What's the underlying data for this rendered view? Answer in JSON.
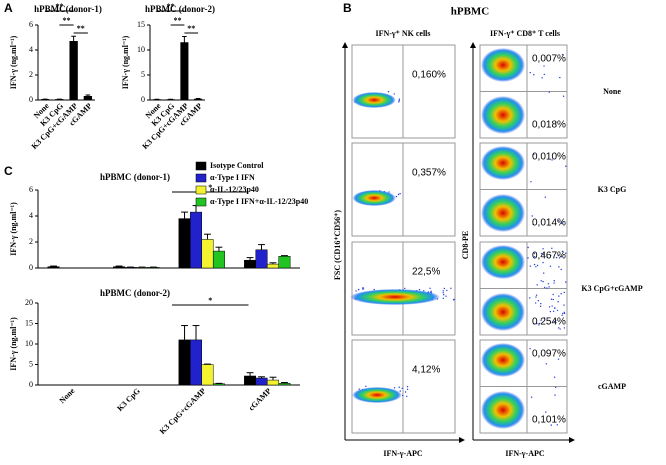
{
  "figure": {
    "panel_a": "A",
    "panel_b": "B",
    "panel_c": "C",
    "b_title": "hPBMC",
    "nk_header": "IFN-γ⁺ NK cells",
    "cd8_header": "IFN-γ⁺ CD8⁺ T cells",
    "nk_ylabel": "FSC (CD16⁺CD56⁺)",
    "nk_xlabel": "IFN-γ-APC",
    "cd8_ylabel": "CD8-PE",
    "cd8_xlabel": "IFN-γ-APC",
    "rows": [
      {
        "label": "None",
        "nk": "0,160%",
        "cd8_top": "0,007%",
        "cd8_bottom": "0,018%"
      },
      {
        "label": "K3 CpG",
        "nk": "0,357%",
        "cd8_top": "0,010%",
        "cd8_bottom": "0,014%"
      },
      {
        "label": "K3 CpG+cGAMP",
        "nk": "22,5%",
        "cd8_top": "0,467%",
        "cd8_bottom": "0,254%"
      },
      {
        "label": "cGAMP",
        "nk": "4,12%",
        "cd8_top": "0,097%",
        "cd8_bottom": "0,101%"
      }
    ]
  },
  "chart_data": [
    {
      "type": "bar",
      "title": "hPBMC(donor-1)",
      "y_label": "IFN-γ (ng.ml⁻¹)",
      "categories": [
        "None",
        "K3 CpG",
        "K3 CpG+cGAMP",
        "cGAMP"
      ],
      "values": [
        0.05,
        0.05,
        4.7,
        0.3
      ],
      "errors": [
        0.02,
        0.02,
        0.4,
        0.1
      ],
      "color": "#000000",
      "ylim": [
        0,
        6
      ],
      "yticks": [
        0,
        2,
        4,
        6
      ],
      "significance": [
        "**",
        "**",
        "**"
      ]
    },
    {
      "type": "bar",
      "title": "hPBMC (donor-2)",
      "y_label": "IFN-γ (ng.ml⁻¹)",
      "categories": [
        "None",
        "K3 CpG",
        "K3 CpG+cGAMP",
        "cGAMP"
      ],
      "values": [
        0.1,
        0.1,
        11.5,
        0.2
      ],
      "errors": [
        0.05,
        0.05,
        1.2,
        0.1
      ],
      "color": "#000000",
      "ylim": [
        0,
        15
      ],
      "yticks": [
        0,
        5,
        10,
        15
      ],
      "significance": [
        "**",
        "**",
        "**"
      ]
    },
    {
      "type": "bar",
      "title": "hPBMC (donor-1)",
      "y_label": "IFN-γ (ng.ml⁻¹)",
      "series": [
        {
          "name": "Isotype Control",
          "color": "#000000",
          "values": [
            0.1,
            0.1,
            3.8,
            0.6
          ],
          "errors": [
            0.05,
            0.05,
            0.5,
            0.2
          ]
        },
        {
          "name": "α-Type I IFN",
          "color": "#2222cc",
          "values": [
            0,
            0.05,
            4.3,
            1.4
          ],
          "errors": [
            0,
            0.02,
            0.5,
            0.4
          ]
        },
        {
          "name": "α-IL-12/23p40",
          "color": "#f2f230",
          "values": [
            0,
            0.05,
            2.2,
            0.3
          ],
          "errors": [
            0,
            0.02,
            0.4,
            0.1
          ]
        },
        {
          "name": "α-Type I IFN+α-IL-12/23p40",
          "color": "#22c422",
          "values": [
            0,
            0.05,
            1.3,
            0.9
          ],
          "errors": [
            0,
            0.02,
            0.3,
            0.05
          ]
        }
      ],
      "ylim": [
        0,
        6
      ],
      "yticks": [
        0,
        2,
        4,
        6
      ],
      "significance": [
        "*"
      ]
    },
    {
      "type": "bar",
      "title": "hPBMC (donor-2)",
      "y_label": "IFN-γ (ng.ml⁻¹)",
      "categories": [
        "None",
        "K3 CpG",
        "K3 CpG+cGAMP",
        "cGAMP"
      ],
      "series": [
        {
          "color": "#000000",
          "values": [
            0,
            0,
            11,
            2.2
          ],
          "errors": [
            0,
            0,
            3.5,
            0.8
          ]
        },
        {
          "color": "#2222cc",
          "values": [
            0,
            0,
            11,
            1.7
          ],
          "errors": [
            0,
            0,
            3.5,
            0.3
          ]
        },
        {
          "color": "#f2f230",
          "values": [
            0,
            0,
            5,
            1.2
          ],
          "errors": [
            0,
            0,
            0.1,
            0.7
          ]
        },
        {
          "color": "#22c422",
          "values": [
            0,
            0,
            0.3,
            0.4
          ],
          "errors": [
            0,
            0,
            0.1,
            0.2
          ]
        }
      ],
      "ylim": [
        0,
        20
      ],
      "yticks": [
        0,
        5,
        10,
        15,
        20
      ],
      "significance": [
        "*"
      ]
    }
  ]
}
